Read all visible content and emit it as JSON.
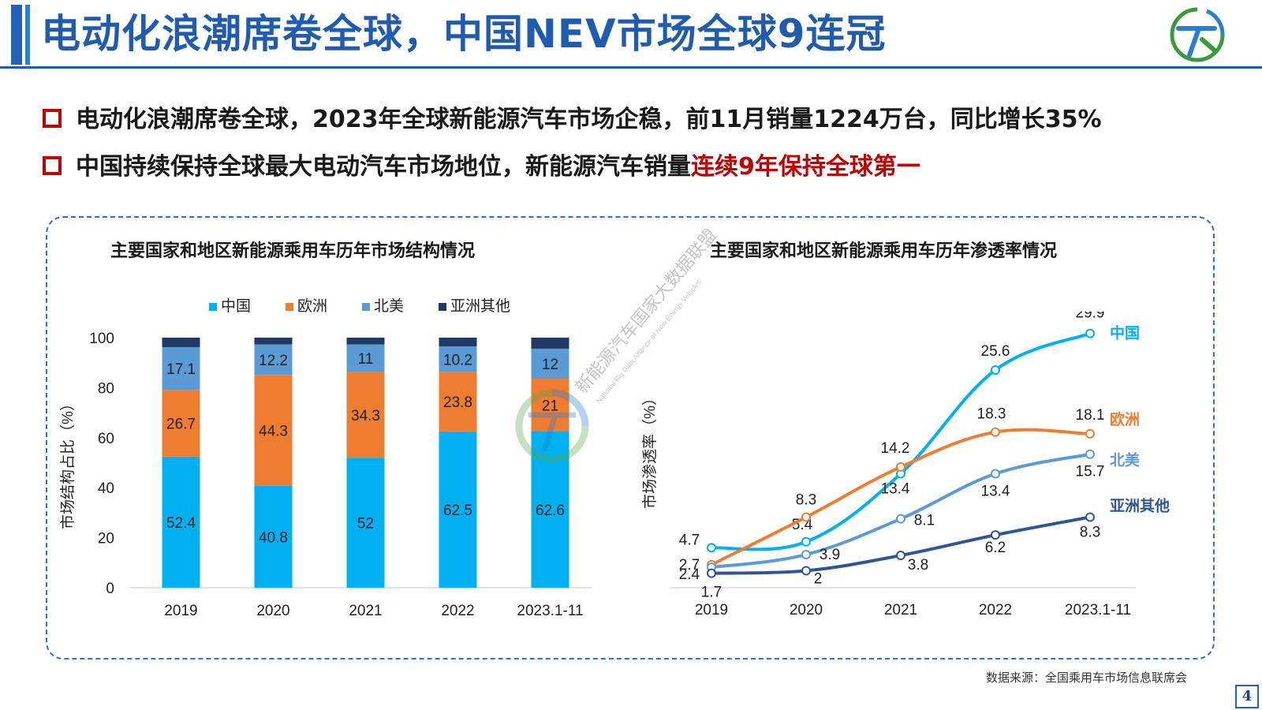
{
  "header": {
    "title": "电动化浪潮席卷全球，中国NEV市场全球9连冠"
  },
  "bullets": [
    {
      "text": "电动化浪潮席卷全球，2023年全球新能源汽车市场企稳，前11月销量1224万台，同比增长35%",
      "highlight": ""
    },
    {
      "text": "中国持续保持全球最大电动汽车市场地位，新能源汽车销量",
      "highlight": "连续9年保持全球第一"
    }
  ],
  "watermark": {
    "line1": "新能源汽车国家大数据联盟",
    "line2": "National Big Data Alliance of New Energy Vehicles"
  },
  "source": "数据来源：全国乘用车市场信息联席会",
  "page_number": "4",
  "colors": {
    "china": "#00b0f0",
    "europe": "#ed7d31",
    "north_america": "#5b9bd5",
    "asia_other": "#203864",
    "brand_blue": "#1f5cb0",
    "highlight_red": "#c00000"
  },
  "chart_data": [
    {
      "type": "bar",
      "stacked": true,
      "title": "主要国家和地区新能源乘用车历年市场结构情况",
      "ylabel": "市场结构占比（%）",
      "xlabel": "",
      "ylim": [
        0,
        100
      ],
      "yticks": [
        "0",
        "20",
        "40",
        "60",
        "80",
        "100"
      ],
      "categories": [
        "2019",
        "2020",
        "2021",
        "2022",
        "2023.1-11"
      ],
      "legend_position": "top",
      "series": [
        {
          "name": "中国",
          "color": "#00b0f0",
          "values": [
            52.4,
            40.8,
            52,
            62.5,
            62.6
          ],
          "labels": [
            "52.4",
            "40.8",
            "52",
            "62.5",
            "62.6"
          ]
        },
        {
          "name": "欧洲",
          "color": "#ed7d31",
          "values": [
            26.7,
            44.3,
            34.3,
            23.8,
            21
          ],
          "labels": [
            "26.7",
            "44.3",
            "34.3",
            "23.8",
            "21"
          ]
        },
        {
          "name": "北美",
          "color": "#5b9bd5",
          "values": [
            17.1,
            12.2,
            11,
            10.2,
            12
          ],
          "labels": [
            "17.1",
            "12.2",
            "11",
            "10.2",
            "12"
          ]
        },
        {
          "name": "亚洲其他",
          "color": "#203864",
          "values": [
            3.8,
            2.7,
            2.7,
            3.5,
            4.4
          ],
          "labels": [
            "",
            "",
            "",
            "",
            ""
          ]
        }
      ]
    },
    {
      "type": "line",
      "title": "主要国家和地区新能源乘用车历年渗透率情况",
      "ylabel": "市场渗透率（%）",
      "xlabel": "",
      "ylim": [
        0,
        32
      ],
      "categories": [
        "2019",
        "2020",
        "2021",
        "2022",
        "2023.1-11"
      ],
      "legend_position": "right (labels at line ends)",
      "series": [
        {
          "name": "中国",
          "color": "#00b0f0",
          "values": [
            4.7,
            5.4,
            13.4,
            25.6,
            29.9
          ],
          "labels": [
            "4.7",
            "5.4",
            "13.4",
            "25.6",
            "29.9"
          ]
        },
        {
          "name": "欧洲",
          "color": "#ed7d31",
          "values": [
            2.7,
            8.3,
            14.2,
            18.3,
            18.1
          ],
          "labels": [
            "2.7",
            "8.3",
            "14.2",
            "18.3",
            "18.1"
          ]
        },
        {
          "name": "北美",
          "color": "#5b9bd5",
          "values": [
            2.4,
            3.9,
            8.1,
            13.4,
            15.7
          ],
          "labels": [
            "2.4",
            "3.9",
            "8.1",
            "13.4",
            "15.7"
          ]
        },
        {
          "name": "亚洲其他",
          "color": "#2f5597",
          "values": [
            1.7,
            2,
            3.8,
            6.2,
            8.3
          ],
          "labels": [
            "1.7",
            "2",
            "3.8",
            "6.2",
            "8.3"
          ]
        }
      ]
    }
  ]
}
